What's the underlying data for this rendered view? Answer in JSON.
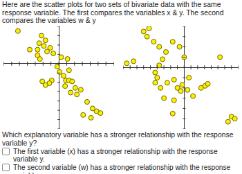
{
  "header": "Here are the scatter plots for two sets of bivariate data with the same response variable. The first compares the variables x & y. The second compares the variables w & y",
  "chart_data": [
    {
      "type": "scatter",
      "color": "#ffee00",
      "marker": "circle",
      "tick_labels": false,
      "x": [
        -5.2,
        -2.2,
        -1.7,
        -2.5,
        -1.9,
        -2.7,
        -1.5,
        -2.7,
        -2.4,
        -1.1,
        -0.7,
        0.3,
        1.1,
        -0.2,
        0.1,
        0.6,
        0.9,
        1.3,
        1.7,
        -0.9,
        -1.2,
        1.3,
        0.8,
        2.1,
        2.8,
        2.3,
        3.6,
        4.3,
        4.8,
        5.3,
        3.1,
        4.1,
        -1.7,
        -2.1,
        1.5,
        -3.7
      ],
      "values": [
        3.5,
        3.0,
        2.5,
        2.2,
        1.9,
        1.5,
        1.3,
        0.9,
        0.5,
        1.7,
        1.1,
        0.7,
        0.5,
        -0.3,
        -0.9,
        -1.3,
        -1.8,
        -1.8,
        -1.9,
        -1.8,
        -2.1,
        -0.7,
        -2.4,
        -2.6,
        -2.8,
        -3.3,
        -4.1,
        -4.8,
        -5.1,
        -5.3,
        -5.5,
        -5.8,
        -2.3,
        -1.9,
        -3.1,
        1.5
      ],
      "xlim": [
        -7,
        7
      ],
      "ylim": [
        -7,
        4
      ],
      "xticks": [
        -7,
        -6,
        -5,
        -4,
        -3,
        -2,
        -1,
        0,
        1,
        2,
        3,
        4,
        5,
        6,
        7
      ],
      "yticks": [
        -7,
        -6,
        -5,
        -4,
        -3,
        -2,
        -1,
        0,
        1,
        2,
        3,
        4
      ]
    },
    {
      "type": "scatter",
      "color": "#ffee00",
      "marker": "circle",
      "tick_labels": false,
      "x": [
        -8.5,
        -7.5,
        -6.0,
        -5.2,
        -5.5,
        -4.5,
        -3.7,
        -2.7,
        -3.2,
        -3.7,
        -4.3,
        -4.0,
        -4.3,
        -3.5,
        -2.5,
        -1.5,
        -1.0,
        -0.3,
        0.5,
        0.7,
        0.0,
        -0.7,
        -1.7,
        1.3,
        2.5,
        3.1,
        3.5,
        -0.5,
        -3.0,
        -1.5,
        5.3,
        6.5,
        7.0,
        7.5,
        -1.7
      ],
      "values": [
        0.4,
        0.6,
        3.5,
        3.8,
        3.0,
        2.5,
        2.0,
        1.5,
        0.8,
        0.2,
        -0.5,
        -1.0,
        -1.5,
        -2.0,
        -1.5,
        -1.2,
        -2.0,
        -1.7,
        -2.2,
        -1.0,
        1.0,
        2.0,
        2.5,
        -2.8,
        -2.0,
        -1.8,
        -1.6,
        -2.3,
        -3.0,
        -3.2,
        1.0,
        -5.3,
        -4.8,
        -5.0,
        -4.5
      ],
      "xlim": [
        -9,
        8
      ],
      "ylim": [
        -6,
        4
      ],
      "xticks": [
        -9,
        -8,
        -7,
        -6,
        -5,
        -4,
        -3,
        -2,
        -1,
        0,
        1,
        2,
        3,
        4,
        5,
        6,
        7,
        8
      ],
      "yticks": [
        -6,
        -5,
        -4,
        -3,
        -2,
        -1,
        0,
        1,
        2,
        3,
        4
      ]
    }
  ],
  "question": "Which explanatory variable has a stronger relationship with the response variable y?",
  "options": [
    "The first variable (x) has a stronger relationship with the response variable y.",
    "The second variable (w) has a stronger relationship with the response variable y."
  ]
}
